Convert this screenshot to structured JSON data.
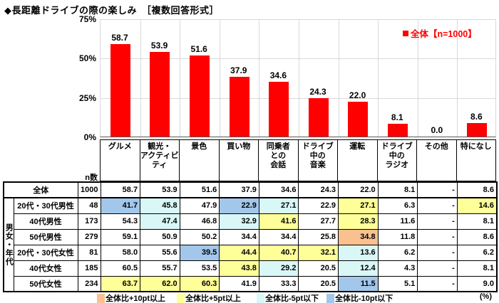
{
  "title": "◆長距離ドライブの際の楽しみ　［複数回答形式］",
  "chart_data": {
    "type": "bar",
    "title": "長距離ドライブの際の楽しみ（複数回答形式）",
    "categories": [
      "グルメ",
      "観光・アクティビティ",
      "景色",
      "買い物",
      "同乗者との会話",
      "ドライブ中の音楽",
      "運転",
      "ドライブ中のラジオ",
      "その他",
      "特になし"
    ],
    "values": [
      58.7,
      53.9,
      51.6,
      37.9,
      34.6,
      24.3,
      22.0,
      8.1,
      0.0,
      8.6
    ],
    "value_labels": [
      "58.7",
      "53.9",
      "51.6",
      "37.9",
      "34.6",
      "24.3",
      "22.0",
      "8.1",
      "0.0",
      "8.6"
    ],
    "legend": "全体【n=1000】",
    "legend_position": "top-right",
    "bar_color": "#ff0000",
    "ylim": [
      0,
      75
    ],
    "yticks": [
      "75%",
      "50%",
      "25%",
      "0%"
    ],
    "grid": true
  },
  "table": {
    "n_header": "n数",
    "side_label": "男女・年代",
    "col_headers": [
      "グルメ",
      "観光・\nアクティビ\nティ",
      "景色",
      "買い物",
      "同乗者\nとの\n会話",
      "ドライブ\n中の\n音楽",
      "運転",
      "ドライブ\n中の\nラジオ",
      "その他",
      "特になし"
    ],
    "rows": [
      {
        "label": "全体",
        "n": "1000",
        "total": true,
        "values": [
          "58.7",
          "53.9",
          "51.6",
          "37.9",
          "34.6",
          "24.3",
          "22.0",
          "8.1",
          "-",
          "8.6"
        ],
        "hl": [
          null,
          null,
          null,
          null,
          null,
          null,
          null,
          null,
          null,
          null
        ]
      },
      {
        "label": "20代・30代男性",
        "n": "48",
        "values": [
          "41.7",
          "45.8",
          "47.9",
          "22.9",
          "27.1",
          "22.9",
          "27.1",
          "6.3",
          "-",
          "14.6"
        ],
        "hl": [
          "b",
          "c",
          null,
          "b",
          "c",
          null,
          "y",
          null,
          null,
          "y"
        ]
      },
      {
        "label": "40代男性",
        "n": "173",
        "values": [
          "54.3",
          "47.4",
          "46.8",
          "32.9",
          "41.6",
          "27.7",
          "28.3",
          "11.6",
          "-",
          "8.1"
        ],
        "hl": [
          null,
          "c",
          null,
          "c",
          "y",
          null,
          "y",
          null,
          null,
          null
        ]
      },
      {
        "label": "50代男性",
        "n": "279",
        "values": [
          "59.1",
          "50.9",
          "50.2",
          "34.4",
          "34.4",
          "25.8",
          "34.8",
          "11.8",
          "-",
          "8.6"
        ],
        "hl": [
          null,
          null,
          null,
          null,
          null,
          null,
          "o",
          null,
          null,
          null
        ]
      },
      {
        "label": "20代・30代女性",
        "n": "81",
        "values": [
          "58.0",
          "55.6",
          "39.5",
          "44.4",
          "40.7",
          "32.1",
          "13.6",
          "6.2",
          "-",
          "6.2"
        ],
        "hl": [
          null,
          null,
          "b",
          "y",
          "y",
          "y",
          "c",
          null,
          null,
          null
        ]
      },
      {
        "label": "40代女性",
        "n": "185",
        "values": [
          "60.5",
          "55.7",
          "53.5",
          "43.8",
          "29.2",
          "20.5",
          "12.4",
          "4.3",
          "-",
          "8.1"
        ],
        "hl": [
          null,
          null,
          null,
          "y",
          "c",
          null,
          "c",
          null,
          null,
          null
        ]
      },
      {
        "label": "50代女性",
        "n": "234",
        "values": [
          "63.7",
          "62.0",
          "60.3",
          "41.9",
          "33.3",
          "20.5",
          "11.5",
          "5.1",
          "-",
          "9.0"
        ],
        "hl": [
          "y",
          "y",
          "y",
          null,
          null,
          null,
          "b",
          null,
          null,
          null
        ]
      }
    ]
  },
  "highlight_colors": {
    "o": "#FAC090",
    "y": "#FFFF99",
    "c": "#D9F7F7",
    "b": "#A3C7EA"
  },
  "bottom_legend": {
    "items": [
      {
        "key": "o",
        "label": "全体比+10pt以上"
      },
      {
        "key": "y",
        "label": "全体比+5pt以上"
      },
      {
        "key": "c",
        "label": "全体比-5pt以下"
      },
      {
        "key": "b",
        "label": "全体比-10pt以下"
      }
    ],
    "unit": "(%)"
  }
}
